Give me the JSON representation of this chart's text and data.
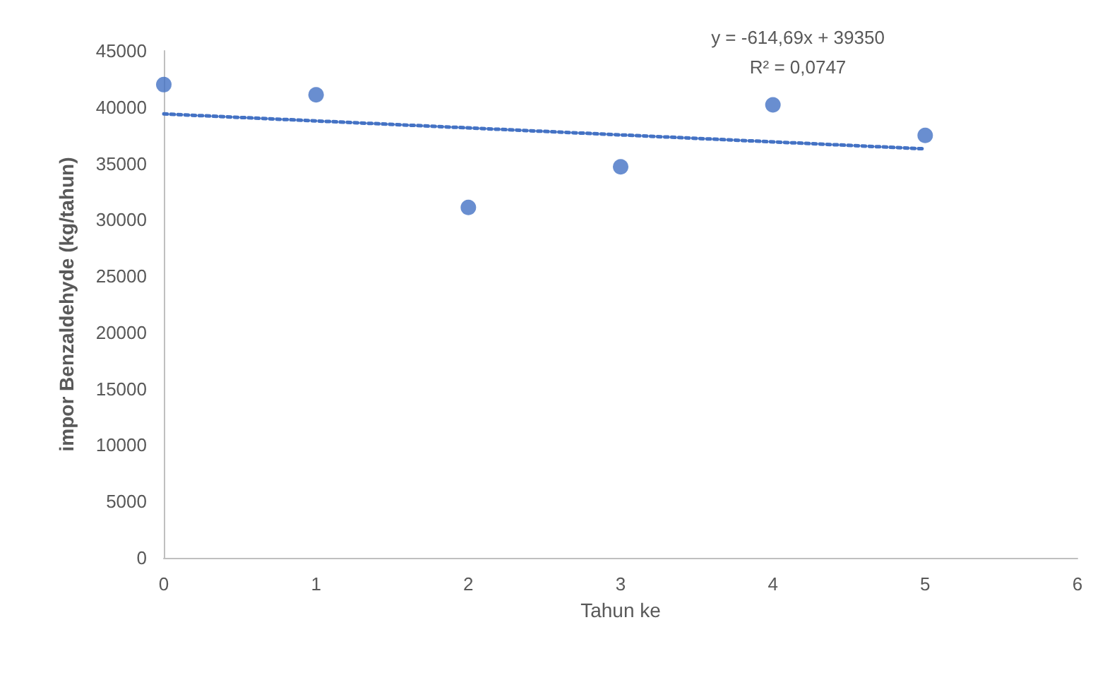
{
  "chart_data": {
    "type": "scatter",
    "xlabel": "Tahun ke",
    "ylabel": "impor Benzaldehyde (kg/tahun)",
    "series": [
      {
        "color": "#4472c4",
        "x": [
          0,
          1,
          2,
          3,
          4,
          5
        ],
        "values": [
          42000,
          41100,
          31100,
          34700,
          40200,
          37500
        ],
        "marker": "circle"
      },
      {
        "type": "line",
        "color": "#4472c4",
        "x": [
          0,
          5
        ],
        "values": [
          39400,
          36300
        ],
        "line_style": "dotted",
        "marker": "none"
      }
    ],
    "xlim": [
      0,
      6
    ],
    "xticks": [
      0,
      1,
      2,
      3,
      4,
      5,
      6
    ],
    "ylim": [
      0,
      45000
    ],
    "yticks": [
      0,
      5000,
      10000,
      15000,
      20000,
      25000,
      30000,
      35000,
      40000,
      45000
    ],
    "grid": false,
    "annotations": [
      "y = -614,69x + 39350\nR² = 0,0747"
    ]
  }
}
